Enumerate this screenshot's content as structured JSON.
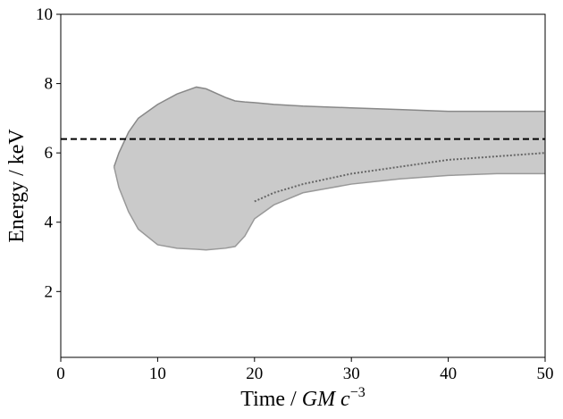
{
  "chart_data": {
    "type": "band",
    "xlabel": {
      "text": "Time / ",
      "math": "GM c",
      "exponent": "−3"
    },
    "ylabel": "Energy / keV",
    "x": [
      5.5,
      6,
      7,
      8,
      10,
      12,
      14,
      15,
      17,
      18,
      19,
      20,
      22,
      25,
      30,
      35,
      40,
      45,
      50
    ],
    "band": {
      "color": "#b8b8b8",
      "upper": [
        5.6,
        6.0,
        6.6,
        7.0,
        7.4,
        7.7,
        7.9,
        7.85,
        7.6,
        7.5,
        7.47,
        7.45,
        7.4,
        7.35,
        7.3,
        7.25,
        7.2,
        7.2,
        7.2
      ],
      "lower": [
        5.6,
        5.0,
        4.3,
        3.8,
        3.35,
        3.25,
        3.22,
        3.2,
        3.25,
        3.3,
        3.6,
        4.1,
        4.5,
        4.85,
        5.1,
        5.25,
        5.35,
        5.4,
        5.4
      ]
    },
    "line": {
      "color": "#666666",
      "values": [
        null,
        null,
        null,
        null,
        null,
        null,
        null,
        null,
        null,
        null,
        null,
        4.6,
        4.85,
        5.1,
        5.4,
        5.6,
        5.8,
        5.9,
        6.0
      ]
    },
    "hline": {
      "value": 6.4,
      "color": "#000000",
      "dashed": true
    },
    "xlim": [
      0,
      50
    ],
    "xticks": [
      0,
      10,
      20,
      30,
      40,
      50
    ],
    "ylim": [
      0.1,
      10
    ],
    "yticks": [
      2,
      4,
      6,
      8,
      10
    ]
  }
}
